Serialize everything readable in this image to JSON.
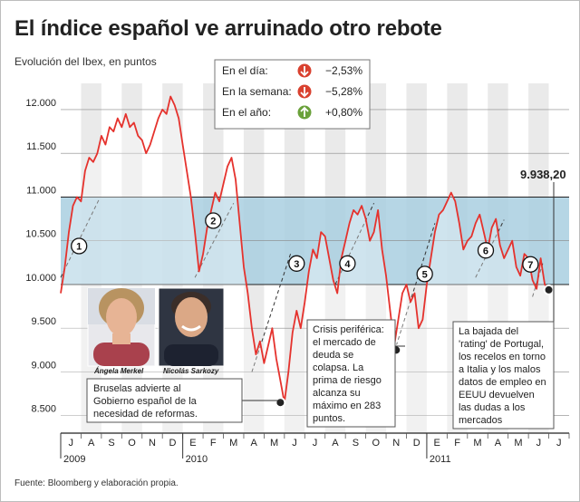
{
  "header": {
    "title": "El índice español ve arruinado otro rebote",
    "subtitle": "Evolución del Ibex, en puntos"
  },
  "summary": [
    {
      "label": "En el día:",
      "value": "−2,53%",
      "direction": "down",
      "color": "#d9412f"
    },
    {
      "label": "En la semana:",
      "value": "−5,28%",
      "direction": "down",
      "color": "#d9412f"
    },
    {
      "label": "En el año:",
      "value": "+0,80%",
      "direction": "up",
      "color": "#6aa13a"
    }
  ],
  "last_value_label": "9.938,20",
  "photos": {
    "person1": "Ángela Merkel",
    "person2": "Nicolás Sarkozy"
  },
  "annotations": {
    "bruselas": [
      "Bruselas advierte al",
      "Gobierno español de la",
      "necesidad de reformas."
    ],
    "crisis": [
      "Crisis periférica:",
      "el mercado de",
      "deuda se",
      "colapsa. La",
      "prima de riesgo",
      "alcanza su",
      "máximo en 283",
      "puntos."
    ],
    "portugal": [
      "La bajada del",
      "'rating' de Portugal,",
      "los recelos en torno",
      "a Italia y los malos",
      "datos de empleo en",
      "EEUU devuelven",
      "las dudas a los",
      "mercados"
    ]
  },
  "source": "Fuente: Bloomberg y elaboración propia.",
  "colors": {
    "line": "#e5322d",
    "band": "#a9cfe0",
    "stripe": "#eaeaea",
    "marker_red": "#d9412f",
    "marker_green": "#6aa13a"
  },
  "chart_data": {
    "type": "line",
    "ylim": [
      8300,
      12300
    ],
    "yticks": [
      8500,
      9000,
      9500,
      10000,
      10500,
      11000,
      11500,
      12000
    ],
    "ytick_labels": [
      "8.500",
      "9.000",
      "9.500",
      "10.000",
      "10.500",
      "11.000",
      "11.500",
      "12.000"
    ],
    "band": [
      10000,
      11000
    ],
    "month_labels": [
      "J",
      "A",
      "S",
      "O",
      "N",
      "D",
      "E",
      "F",
      "M",
      "A",
      "M",
      "J",
      "J",
      "A",
      "S",
      "O",
      "N",
      "D",
      "E",
      "F",
      "M",
      "A",
      "M",
      "J",
      "J"
    ],
    "year_labels": [
      {
        "label": "2009",
        "month_index": 0
      },
      {
        "label": "2010",
        "month_index": 6
      },
      {
        "label": "2011",
        "month_index": 18
      }
    ],
    "series": [
      {
        "values": [
          [
            0,
            9900
          ],
          [
            0.2,
            10200
          ],
          [
            0.4,
            10600
          ],
          [
            0.6,
            10900
          ],
          [
            0.8,
            11000
          ],
          [
            1.0,
            10950
          ],
          [
            1.2,
            11300
          ],
          [
            1.4,
            11450
          ],
          [
            1.6,
            11400
          ],
          [
            1.8,
            11500
          ],
          [
            2.0,
            11700
          ],
          [
            2.2,
            11600
          ],
          [
            2.4,
            11800
          ],
          [
            2.6,
            11750
          ],
          [
            2.8,
            11900
          ],
          [
            3.0,
            11800
          ],
          [
            3.2,
            11950
          ],
          [
            3.4,
            11800
          ],
          [
            3.6,
            11850
          ],
          [
            3.8,
            11700
          ],
          [
            4.0,
            11650
          ],
          [
            4.2,
            11500
          ],
          [
            4.4,
            11600
          ],
          [
            4.6,
            11750
          ],
          [
            4.8,
            11900
          ],
          [
            5.0,
            12000
          ],
          [
            5.2,
            11950
          ],
          [
            5.4,
            12150
          ],
          [
            5.6,
            12050
          ],
          [
            5.8,
            11900
          ],
          [
            6.0,
            11600
          ],
          [
            6.2,
            11300
          ],
          [
            6.4,
            11000
          ],
          [
            6.6,
            10600
          ],
          [
            6.8,
            10150
          ],
          [
            7.0,
            10350
          ],
          [
            7.2,
            10650
          ],
          [
            7.4,
            10850
          ],
          [
            7.6,
            11050
          ],
          [
            7.8,
            10950
          ],
          [
            8.0,
            11150
          ],
          [
            8.2,
            11350
          ],
          [
            8.4,
            11450
          ],
          [
            8.6,
            11200
          ],
          [
            8.8,
            10700
          ],
          [
            9.0,
            10200
          ],
          [
            9.2,
            9900
          ],
          [
            9.4,
            9500
          ],
          [
            9.6,
            9200
          ],
          [
            9.8,
            9350
          ],
          [
            10.0,
            9100
          ],
          [
            10.2,
            9300
          ],
          [
            10.4,
            9500
          ],
          [
            10.6,
            9150
          ],
          [
            10.8,
            8900
          ],
          [
            11.0,
            8650
          ],
          [
            11.2,
            9000
          ],
          [
            11.4,
            9450
          ],
          [
            11.6,
            9700
          ],
          [
            11.8,
            9500
          ],
          [
            12.0,
            9800
          ],
          [
            12.2,
            10150
          ],
          [
            12.4,
            10400
          ],
          [
            12.6,
            10300
          ],
          [
            12.8,
            10600
          ],
          [
            13.0,
            10550
          ],
          [
            13.2,
            10300
          ],
          [
            13.4,
            10050
          ],
          [
            13.6,
            9900
          ],
          [
            13.8,
            10300
          ],
          [
            14.0,
            10500
          ],
          [
            14.2,
            10700
          ],
          [
            14.4,
            10850
          ],
          [
            14.6,
            10800
          ],
          [
            14.8,
            10900
          ],
          [
            15.0,
            10750
          ],
          [
            15.2,
            10500
          ],
          [
            15.4,
            10600
          ],
          [
            15.6,
            10850
          ],
          [
            15.8,
            10400
          ],
          [
            16.0,
            10100
          ],
          [
            16.2,
            9700
          ],
          [
            16.4,
            9300
          ],
          [
            16.6,
            9600
          ],
          [
            16.8,
            9900
          ],
          [
            17.0,
            10000
          ],
          [
            17.2,
            9800
          ],
          [
            17.4,
            9900
          ],
          [
            17.6,
            9500
          ],
          [
            17.8,
            9600
          ],
          [
            18.0,
            10000
          ],
          [
            18.2,
            10300
          ],
          [
            18.4,
            10600
          ],
          [
            18.6,
            10800
          ],
          [
            18.8,
            10850
          ],
          [
            19.0,
            10950
          ],
          [
            19.2,
            11050
          ],
          [
            19.4,
            10950
          ],
          [
            19.6,
            10700
          ],
          [
            19.8,
            10400
          ],
          [
            20.0,
            10500
          ],
          [
            20.2,
            10550
          ],
          [
            20.4,
            10700
          ],
          [
            20.6,
            10800
          ],
          [
            20.8,
            10600
          ],
          [
            21.0,
            10400
          ],
          [
            21.2,
            10650
          ],
          [
            21.4,
            10750
          ],
          [
            21.6,
            10450
          ],
          [
            21.8,
            10300
          ],
          [
            22.0,
            10400
          ],
          [
            22.2,
            10500
          ],
          [
            22.4,
            10200
          ],
          [
            22.6,
            10100
          ],
          [
            22.8,
            10350
          ],
          [
            23.0,
            10300
          ],
          [
            23.2,
            10050
          ],
          [
            23.4,
            9950
          ],
          [
            23.6,
            10300
          ],
          [
            23.8,
            10000
          ],
          [
            24.0,
            9938
          ]
        ]
      }
    ],
    "event_markers": [
      {
        "label": "1",
        "x": 0.9,
        "y": 10440
      },
      {
        "label": "2",
        "x": 7.5,
        "y": 10730
      },
      {
        "label": "3",
        "x": 11.6,
        "y": 10240
      },
      {
        "label": "4",
        "x": 14.1,
        "y": 10240
      },
      {
        "label": "5",
        "x": 17.9,
        "y": 10120
      },
      {
        "label": "6",
        "x": 20.9,
        "y": 10390
      },
      {
        "label": "7",
        "x": 23.1,
        "y": 10230
      }
    ],
    "trend_lines": [
      [
        [
          0.0,
          10080
        ],
        [
          1.9,
          10980
        ]
      ],
      [
        [
          6.6,
          10080
        ],
        [
          8.5,
          10930
        ]
      ],
      [
        [
          9.4,
          9000
        ],
        [
          11.3,
          10350
        ]
      ],
      [
        [
          13.5,
          10000
        ],
        [
          15.4,
          10930
        ]
      ],
      [
        [
          16.5,
          9300
        ],
        [
          18.4,
          10700
        ]
      ],
      [
        [
          20.4,
          10080
        ],
        [
          21.8,
          10740
        ]
      ],
      [
        [
          23.2,
          9860
        ],
        [
          23.7,
          10240
        ]
      ]
    ],
    "highlight_points": [
      {
        "x": 10.8,
        "y": 8650
      },
      {
        "x": 16.5,
        "y": 9250
      },
      {
        "x": 24.0,
        "y": 9938
      }
    ]
  }
}
